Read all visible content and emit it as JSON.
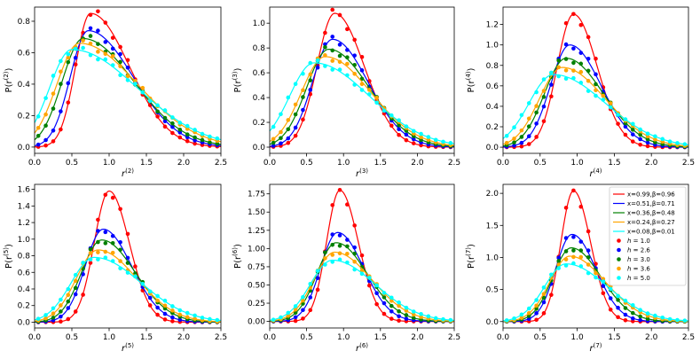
{
  "chart_data": [
    {
      "type": "line",
      "xlabel_base": "r",
      "xlabel_sup": "(2)",
      "ylabel_base": "P(r",
      "ylabel_sup": "(2)",
      "ylabel_end": ")",
      "xlim": [
        0,
        2.5
      ],
      "ylim": [
        -0.04,
        0.89
      ],
      "xticks": [
        "0.0",
        "0.5",
        "1.0",
        "1.5",
        "2.0",
        "2.5"
      ],
      "yticks": [
        "0.0",
        "0.2",
        "0.4",
        "0.6",
        "0.8"
      ],
      "peaks": [
        {
          "mu": 0.75,
          "h": 0.85,
          "sl": 0.2,
          "sr": 0.52
        },
        {
          "mu": 0.72,
          "h": 0.74,
          "sl": 0.24,
          "sr": 0.6
        },
        {
          "mu": 0.65,
          "h": 0.69,
          "sl": 0.28,
          "sr": 0.68
        },
        {
          "mu": 0.6,
          "h": 0.66,
          "sl": 0.3,
          "sr": 0.78
        },
        {
          "mu": 0.5,
          "h": 0.62,
          "sl": 0.3,
          "sr": 0.88
        }
      ]
    },
    {
      "type": "line",
      "xlabel_base": "r",
      "xlabel_sup": "(3)",
      "ylabel_base": "P(r",
      "ylabel_sup": "(3)",
      "ylabel_end": ")",
      "xlim": [
        0,
        2.5
      ],
      "ylim": [
        -0.05,
        1.13
      ],
      "xticks": [
        "0.0",
        "0.5",
        "1.0",
        "1.5",
        "2.0",
        "2.5"
      ],
      "yticks": [
        "0.0",
        "0.2",
        "0.4",
        "0.6",
        "0.8",
        "1.0"
      ],
      "peaks": [
        {
          "mu": 0.88,
          "h": 1.08,
          "sl": 0.24,
          "sr": 0.4
        },
        {
          "mu": 0.85,
          "h": 0.87,
          "sl": 0.27,
          "sr": 0.48
        },
        {
          "mu": 0.8,
          "h": 0.79,
          "sl": 0.3,
          "sr": 0.55
        },
        {
          "mu": 0.75,
          "h": 0.73,
          "sl": 0.32,
          "sr": 0.62
        },
        {
          "mu": 0.6,
          "h": 0.68,
          "sl": 0.33,
          "sr": 0.75
        }
      ]
    },
    {
      "type": "line",
      "xlabel_base": "r",
      "xlabel_sup": "(4)",
      "ylabel_base": "P(r",
      "ylabel_sup": "(4)",
      "ylabel_end": ")",
      "xlim": [
        0,
        2.5
      ],
      "ylim": [
        -0.06,
        1.37
      ],
      "xticks": [
        "0.0",
        "0.5",
        "1.0",
        "1.5",
        "2.0",
        "2.5"
      ],
      "yticks": [
        "0.0",
        "0.2",
        "0.4",
        "0.6",
        "0.8",
        "1.0",
        "1.2"
      ],
      "peaks": [
        {
          "mu": 0.95,
          "h": 1.3,
          "sl": 0.22,
          "sr": 0.32
        },
        {
          "mu": 0.9,
          "h": 1.0,
          "sl": 0.26,
          "sr": 0.42
        },
        {
          "mu": 0.85,
          "h": 0.87,
          "sl": 0.29,
          "sr": 0.5
        },
        {
          "mu": 0.8,
          "h": 0.78,
          "sl": 0.31,
          "sr": 0.58
        },
        {
          "mu": 0.68,
          "h": 0.71,
          "sl": 0.33,
          "sr": 0.7
        }
      ]
    },
    {
      "type": "line",
      "xlabel_base": "r",
      "xlabel_sup": "(5)",
      "ylabel_base": "P(r",
      "ylabel_sup": "(5)",
      "ylabel_end": ")",
      "xlim": [
        0,
        2.5
      ],
      "ylim": [
        -0.07,
        1.66
      ],
      "xticks": [
        "0.0",
        "0.5",
        "1.0",
        "1.5",
        "2.0",
        "2.5"
      ],
      "yticks": [
        "0.0",
        "0.2",
        "0.4",
        "0.6",
        "0.8",
        "1.0",
        "1.2",
        "1.4",
        "1.6"
      ],
      "peaks": [
        {
          "mu": 1.0,
          "h": 1.58,
          "sl": 0.2,
          "sr": 0.27
        },
        {
          "mu": 0.92,
          "h": 1.12,
          "sl": 0.24,
          "sr": 0.38
        },
        {
          "mu": 0.9,
          "h": 0.99,
          "sl": 0.27,
          "sr": 0.45
        },
        {
          "mu": 0.85,
          "h": 0.87,
          "sl": 0.29,
          "sr": 0.52
        },
        {
          "mu": 0.8,
          "h": 0.78,
          "sl": 0.31,
          "sr": 0.63
        }
      ]
    },
    {
      "type": "line",
      "xlabel_base": "r",
      "xlabel_sup": "(6)",
      "ylabel_base": "P(r",
      "ylabel_sup": "(6)",
      "ylabel_end": ")",
      "xlim": [
        0,
        2.5
      ],
      "ylim": [
        -0.09,
        1.88
      ],
      "xticks": [
        "0.0",
        "0.5",
        "1.0",
        "1.5",
        "2.0",
        "2.5"
      ],
      "yticks": [
        "0.00",
        "0.25",
        "0.50",
        "0.75",
        "1.00",
        "1.25",
        "1.50",
        "1.75"
      ],
      "peaks": [
        {
          "mu": 0.95,
          "h": 1.8,
          "sl": 0.18,
          "sr": 0.25
        },
        {
          "mu": 0.92,
          "h": 1.22,
          "sl": 0.23,
          "sr": 0.35
        },
        {
          "mu": 0.9,
          "h": 1.08,
          "sl": 0.26,
          "sr": 0.42
        },
        {
          "mu": 0.88,
          "h": 0.95,
          "sl": 0.28,
          "sr": 0.5
        },
        {
          "mu": 0.85,
          "h": 0.84,
          "sl": 0.3,
          "sr": 0.58
        }
      ]
    },
    {
      "type": "line",
      "xlabel_base": "r",
      "xlabel_sup": "(7)",
      "ylabel_base": "P(r",
      "ylabel_sup": "(7)",
      "ylabel_end": ")",
      "xlim": [
        0,
        2.5
      ],
      "ylim": [
        -0.1,
        2.14
      ],
      "xticks": [
        "0.0",
        "0.5",
        "1.0",
        "1.5",
        "2.0",
        "2.5"
      ],
      "yticks": [
        "0.0",
        "0.5",
        "1.0",
        "1.5",
        "2.0"
      ],
      "peaks": [
        {
          "mu": 0.95,
          "h": 2.04,
          "sl": 0.17,
          "sr": 0.23
        },
        {
          "mu": 0.93,
          "h": 1.36,
          "sl": 0.22,
          "sr": 0.32
        },
        {
          "mu": 0.92,
          "h": 1.15,
          "sl": 0.25,
          "sr": 0.4
        },
        {
          "mu": 0.9,
          "h": 1.02,
          "sl": 0.27,
          "sr": 0.48
        },
        {
          "mu": 0.85,
          "h": 0.9,
          "sl": 0.29,
          "sr": 0.56
        }
      ]
    }
  ],
  "series_colors": [
    "#ff0000",
    "#0000ff",
    "#008000",
    "#ffa500",
    "#00ffff"
  ],
  "legend": {
    "lines": [
      "x=0.99,β=0.96",
      "x=0.51,β=0.71",
      "x=0.36,β=0.48",
      "x=0.24,β=0.27",
      "x=0.08,β=0.01"
    ],
    "dots": [
      "h = 1.0",
      "h = 2.6",
      "h = 3.0",
      "h = 3.6",
      "h = 5.0"
    ]
  }
}
